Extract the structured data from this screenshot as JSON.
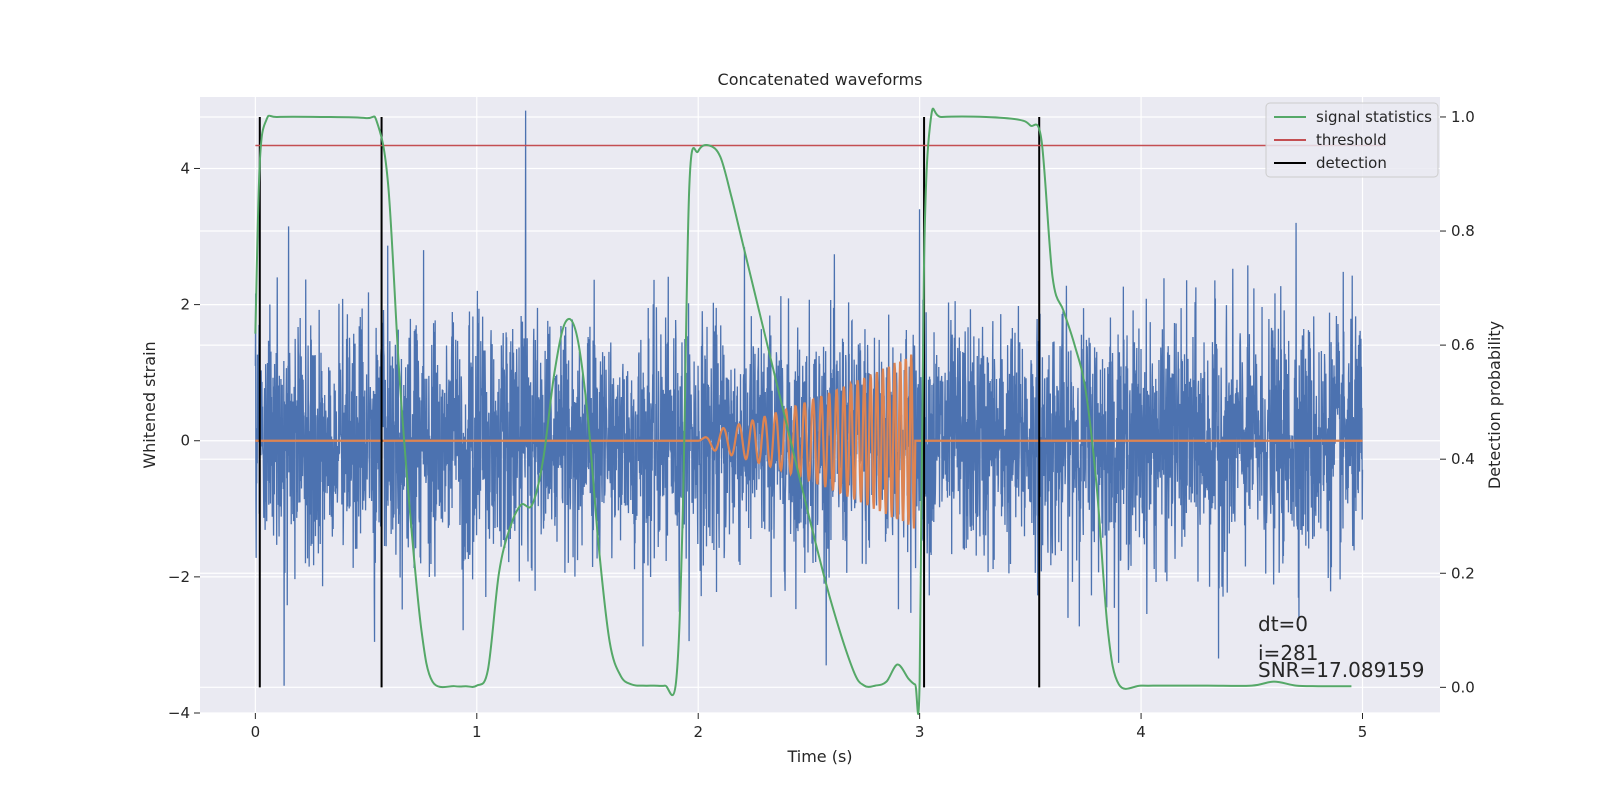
{
  "chart_data": {
    "type": "line",
    "title": "Concatenated waveforms",
    "xlabel": "Time (s)",
    "ylabel_left": "Whitened strain",
    "ylabel_right": "Detection probability",
    "xlim": [
      -0.25,
      5.35
    ],
    "ylim_left": [
      -4.0,
      5.05
    ],
    "ylim_right": [
      -0.045,
      1.035
    ],
    "x_ticks": [
      0,
      1,
      2,
      3,
      4,
      5
    ],
    "x_tick_labels": [
      "0",
      "1",
      "2",
      "3",
      "4",
      "5"
    ],
    "y_left_ticks": [
      -4,
      -2,
      0,
      2,
      4
    ],
    "y_left_tick_labels": [
      "−4",
      "−2",
      "0",
      "2",
      "4"
    ],
    "y_right_ticks": [
      0.0,
      0.2,
      0.4,
      0.6,
      0.8,
      1.0
    ],
    "y_right_tick_labels": [
      "0.0",
      "0.2",
      "0.4",
      "0.6",
      "0.8",
      "1.0"
    ],
    "grid": true,
    "legend_position": "top-right",
    "series": [
      {
        "name": "strain",
        "axis": "left",
        "color": "#4c72b0",
        "kind": "noise",
        "x_range": [
          0,
          5
        ],
        "typical_amplitude": 1.4,
        "peak_values": [
          {
            "x": 1.22,
            "y": 4.85
          },
          {
            "x": 0.15,
            "y": 3.15
          },
          {
            "x": 3.0,
            "y": 3.4
          },
          {
            "x": 4.7,
            "y": 3.2
          },
          {
            "x": 0.13,
            "y": -3.6
          },
          {
            "x": 4.35,
            "y": -3.2
          }
        ]
      },
      {
        "name": "injected waveform",
        "axis": "left",
        "color": "#dd8452",
        "kind": "chirp",
        "x_range": [
          0,
          5
        ],
        "chirp_start": 2.0,
        "chirp_end": 2.98,
        "peak_amplitude": 1.3
      },
      {
        "name": "signal statistics",
        "axis": "right",
        "color": "#55a868",
        "x": [
          0.0,
          0.02,
          0.05,
          0.1,
          0.3,
          0.5,
          0.55,
          0.6,
          0.65,
          0.7,
          0.75,
          0.8,
          0.9,
          0.95,
          1.0,
          1.05,
          1.1,
          1.15,
          1.2,
          1.25,
          1.3,
          1.35,
          1.4,
          1.45,
          1.5,
          1.55,
          1.6,
          1.65,
          1.7,
          1.75,
          1.8,
          1.85,
          1.9,
          1.93,
          1.96,
          2.0,
          2.05,
          2.1,
          2.15,
          2.2,
          2.3,
          2.4,
          2.5,
          2.6,
          2.7,
          2.75,
          2.8,
          2.85,
          2.9,
          2.95,
          2.98,
          3.0,
          3.02,
          3.05,
          3.1,
          3.3,
          3.45,
          3.5,
          3.55,
          3.6,
          3.65,
          3.7,
          3.75,
          3.8,
          3.85,
          3.9,
          4.0,
          4.1,
          4.3,
          4.5,
          4.6,
          4.7,
          4.8,
          4.95
        ],
        "y": [
          0.62,
          0.92,
          0.995,
          1.0,
          1.0,
          0.998,
          0.99,
          0.88,
          0.55,
          0.3,
          0.1,
          0.01,
          0.002,
          0.002,
          0.003,
          0.03,
          0.2,
          0.28,
          0.32,
          0.32,
          0.4,
          0.55,
          0.64,
          0.62,
          0.48,
          0.25,
          0.08,
          0.02,
          0.005,
          0.003,
          0.003,
          0.003,
          0.01,
          0.3,
          0.88,
          0.94,
          0.95,
          0.93,
          0.86,
          0.78,
          0.62,
          0.46,
          0.3,
          0.15,
          0.03,
          0.003,
          0.003,
          0.01,
          0.04,
          0.015,
          0.005,
          0.01,
          0.75,
          0.995,
          1.0,
          1.0,
          0.995,
          0.985,
          0.96,
          0.72,
          0.66,
          0.6,
          0.52,
          0.35,
          0.1,
          0.005,
          0.003,
          0.003,
          0.003,
          0.003,
          0.01,
          0.003,
          0.002,
          0.002
        ]
      },
      {
        "name": "threshold",
        "axis": "right",
        "color": "#c44e52",
        "x": [
          0,
          5.1
        ],
        "y": [
          0.95,
          0.95
        ]
      },
      {
        "name": "detection",
        "axis": "right",
        "color": "#000000",
        "kind": "vlines",
        "x": [
          0.02,
          0.57,
          3.02,
          3.54
        ],
        "y_range": [
          0.0,
          1.0
        ]
      }
    ],
    "legend": [
      "signal statistics",
      "threshold",
      "detection"
    ],
    "annotations": [
      "dt=0",
      "i=281",
      "SNR=17.089159"
    ]
  }
}
